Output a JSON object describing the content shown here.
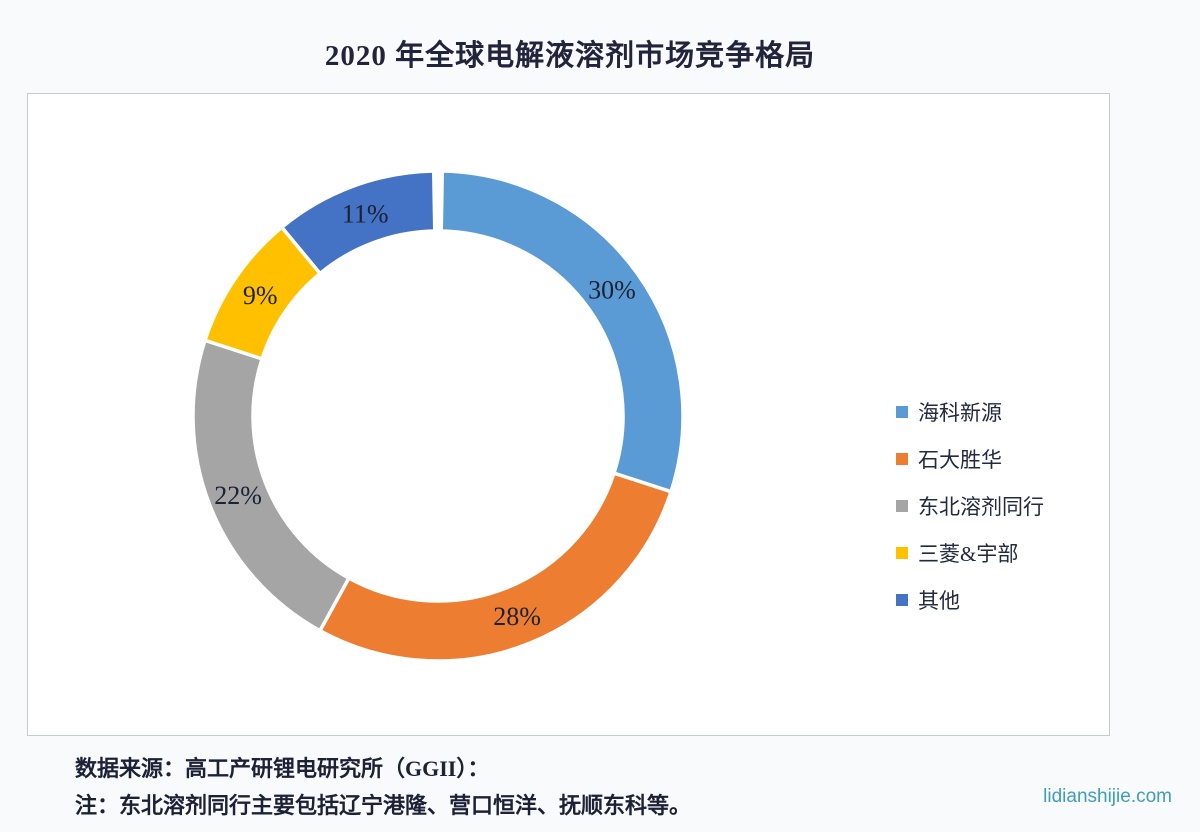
{
  "title": "2020 年全球电解液溶剂市场竞争格局",
  "chart_data": {
    "type": "pie",
    "subtype": "donut",
    "title": "2020 年全球电解液溶剂市场竞争格局",
    "categories": [
      "海科新源",
      "石大胜华",
      "东北溶剂同行",
      "三菱&宇部",
      "其他"
    ],
    "values": [
      30,
      28,
      22,
      9,
      11
    ],
    "data_labels": [
      "30%",
      "28%",
      "22%",
      "9%",
      "11%"
    ],
    "colors": [
      "#5B9BD5",
      "#ED7D31",
      "#A5A5A5",
      "#FFC000",
      "#4472C4"
    ],
    "legend_position": "right",
    "direction": "clockwise",
    "start_angle_deg": 0,
    "hole_ratio": 0.755,
    "slice_border_color": "#FFFFFF",
    "label_color": "#1C2133"
  },
  "footer": {
    "source_line": "数据来源：高工产研锂电研究所（GGII）：",
    "note_line": "注：东北溶剂同行主要包括辽宁港隆、营口恒洋、抚顺东科等。"
  },
  "watermark": {
    "text": "lidianshijie.com",
    "color": "#3E9EB8"
  }
}
